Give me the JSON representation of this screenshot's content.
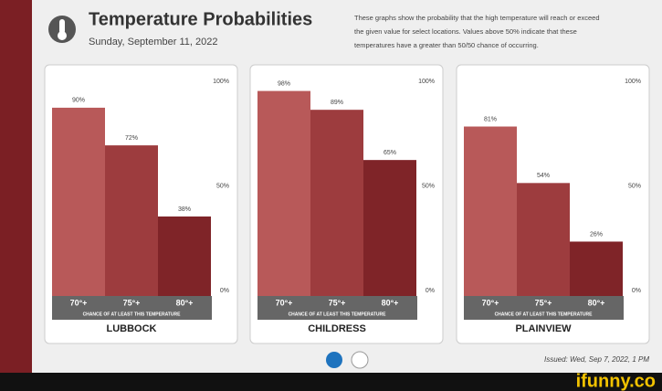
{
  "header": {
    "title": "Temperature Probabilities",
    "date": "Sunday, September 11, 2022",
    "description": [
      "These graphs show the probability that the high temperature will reach or exceed",
      "the given value for select locations. Values above 50% indicate that these",
      "temperatures have a greater than 50/50 chance of occurring."
    ]
  },
  "chart_data": [
    {
      "type": "bar",
      "title": "LUBBOCK",
      "xlabel": "CHANCE OF AT LEAST THIS TEMPERATURE",
      "categories": [
        "70°+",
        "75°+",
        "80°+"
      ],
      "values": [
        90,
        72,
        38
      ],
      "value_labels": [
        "90%",
        "72%",
        "38%"
      ],
      "colors": [
        "#b85959",
        "#9d3c3e",
        "#7f2428"
      ],
      "ylim": [
        0,
        100
      ],
      "yticks": [
        {
          "value": 0,
          "label": "0%"
        },
        {
          "value": 50,
          "label": "50%"
        },
        {
          "value": 100,
          "label": "100%"
        }
      ]
    },
    {
      "type": "bar",
      "title": "CHILDRESS",
      "xlabel": "CHANCE OF AT LEAST THIS TEMPERATURE",
      "categories": [
        "70°+",
        "75°+",
        "80°+"
      ],
      "values": [
        98,
        89,
        65
      ],
      "value_labels": [
        "98%",
        "89%",
        "65%"
      ],
      "colors": [
        "#b85959",
        "#9d3c3e",
        "#7f2428"
      ],
      "ylim": [
        0,
        100
      ],
      "yticks": [
        {
          "value": 0,
          "label": "0%"
        },
        {
          "value": 50,
          "label": "50%"
        },
        {
          "value": 100,
          "label": "100%"
        }
      ]
    },
    {
      "type": "bar",
      "title": "PLAINVIEW",
      "xlabel": "CHANCE OF AT LEAST THIS TEMPERATURE",
      "categories": [
        "70°+",
        "75°+",
        "80°+"
      ],
      "values": [
        81,
        54,
        26
      ],
      "value_labels": [
        "81%",
        "54%",
        "26%"
      ],
      "colors": [
        "#b85959",
        "#9d3c3e",
        "#7f2428"
      ],
      "ylim": [
        0,
        100
      ],
      "yticks": [
        {
          "value": 0,
          "label": "0%"
        },
        {
          "value": 50,
          "label": "50%"
        },
        {
          "value": 100,
          "label": "100%"
        }
      ]
    }
  ],
  "footer": {
    "issued": "Issued: Wed, Sep 7, 2022, 1 PM",
    "watermark": "ifunny.co"
  }
}
